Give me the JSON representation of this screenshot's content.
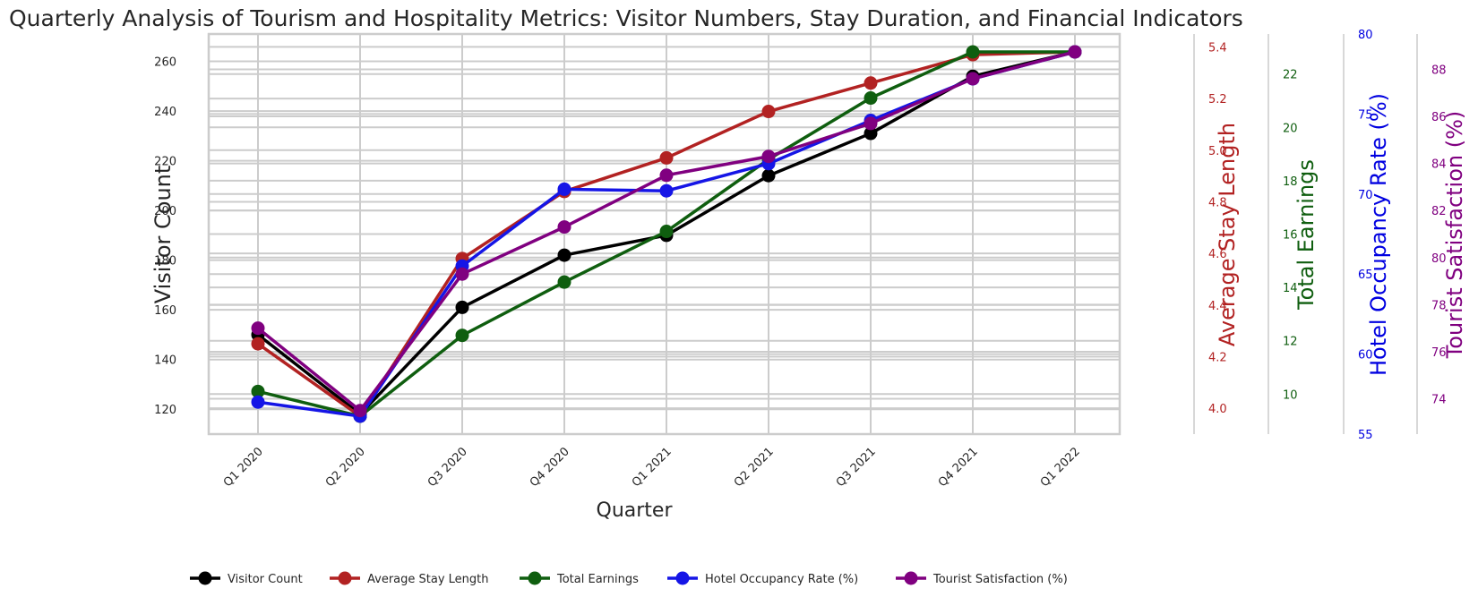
{
  "chart_data": {
    "type": "line",
    "title": "Quarterly Analysis of Tourism and Hospitality Metrics: Visitor Numbers, Stay Duration, and Financial Indicators",
    "xlabel": "Quarter",
    "categories": [
      "Q1 2020",
      "Q2 2020",
      "Q3 2020",
      "Q4 2020",
      "Q1 2021",
      "Q2 2021",
      "Q3 2021",
      "Q4 2021",
      "Q1 2022"
    ],
    "grid": true,
    "legend_position": "bottom",
    "axes": [
      {
        "label": "Visitor Count",
        "side": "left",
        "min": 110,
        "max": 271,
        "ticks": [
          120,
          140,
          160,
          180,
          200,
          220,
          240,
          260
        ],
        "color": "#000000"
      },
      {
        "label": "Average Stay Length",
        "side": "right",
        "min": 3.9,
        "max": 5.45,
        "ticks": [
          "4.0",
          "4.2",
          "4.4",
          "4.6",
          "4.8",
          "5.0",
          "5.2",
          "5.4"
        ],
        "color": "#b22222"
      },
      {
        "label": "Total Earnings",
        "side": "right",
        "min": 8.5,
        "max": 23.5,
        "ticks": [
          "10",
          "12",
          "14",
          "16",
          "18",
          "20",
          "22"
        ],
        "color": "#0f5e0f"
      },
      {
        "label": "Hotel Occupancy Rate (%)",
        "side": "right",
        "min": 55,
        "max": 80,
        "ticks": [
          "55",
          "60",
          "65",
          "70",
          "75",
          "80"
        ],
        "color": "#0000e0"
      },
      {
        "label": "Tourist Satisfaction (%)",
        "side": "right",
        "min": 72.5,
        "max": 89.5,
        "ticks": [
          "74",
          "76",
          "78",
          "80",
          "82",
          "84",
          "86",
          "88"
        ],
        "color": "#800080"
      }
    ],
    "series": [
      {
        "name": "Visitor Count",
        "axis": 0,
        "color": "#000000",
        "values": [
          150,
          118,
          161,
          182,
          190,
          214,
          231,
          254,
          265
        ]
      },
      {
        "name": "Average Stay Length",
        "axis": 1,
        "color": "#b22222",
        "values": [
          4.25,
          3.9,
          4.58,
          4.84,
          4.97,
          5.15,
          5.26,
          5.37,
          5.43
        ]
      },
      {
        "name": "Total Earnings",
        "axis": 2,
        "color": "#0f5e0f",
        "values": [
          10.1,
          9.0,
          12.2,
          14.2,
          16.1,
          18.8,
          21.1,
          23.3,
          24.5
        ]
      },
      {
        "name": "Hotel Occupancy Rate (%)",
        "axis": 3,
        "color": "#1515e6",
        "values": [
          57.0,
          52.2,
          65.5,
          70.3,
          70.2,
          71.9,
          74.6,
          77.2,
          79.0
        ]
      },
      {
        "name": "Tourist Satisfaction (%)",
        "axis": 4,
        "color": "#800080",
        "values": [
          77.0,
          73.5,
          79.3,
          81.3,
          83.5,
          84.3,
          85.7,
          87.6,
          89.0
        ]
      }
    ]
  }
}
